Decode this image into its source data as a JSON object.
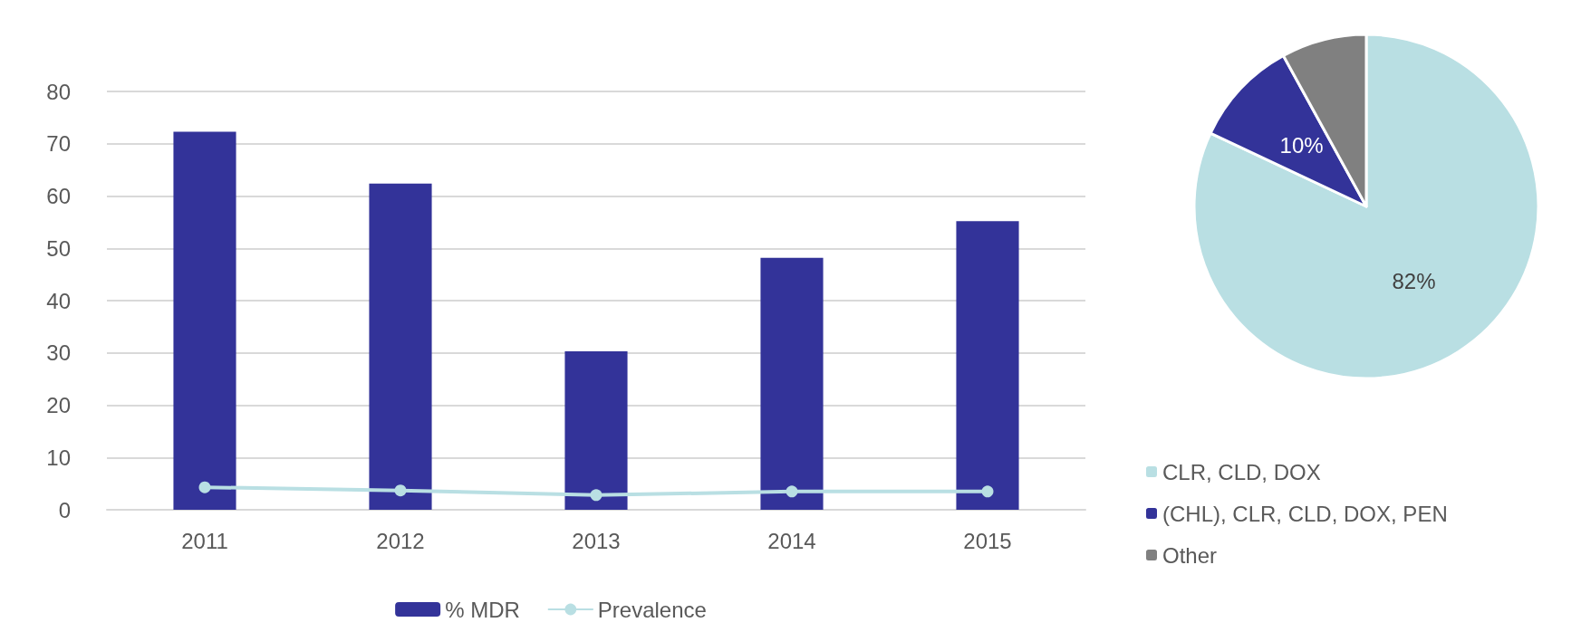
{
  "chart_data": [
    {
      "type": "bar",
      "categories": [
        "2011",
        "2012",
        "2013",
        "2014",
        "2015"
      ],
      "series": [
        {
          "name": "% MDR",
          "type": "bar",
          "color": "#333399",
          "values": [
            72.3,
            62.4,
            30.3,
            48.2,
            55.2
          ]
        },
        {
          "name": "Prevalence",
          "type": "line",
          "color": "#b9dfe3",
          "values": [
            4.3,
            3.7,
            2.8,
            3.5,
            3.5
          ]
        }
      ],
      "ylim": [
        0,
        80
      ],
      "yticks": [
        0,
        10,
        20,
        30,
        40,
        50,
        60,
        70,
        80
      ],
      "grid": "y",
      "legend": "bottom",
      "marker": "circle",
      "line_style": "solid"
    },
    {
      "type": "pie",
      "categories": [
        "CLR, CLD, DOX",
        "(CHL), CLR, CLD, DOX, PEN",
        "Other"
      ],
      "values": [
        82,
        10,
        8
      ],
      "colors": [
        "#b9dfe3",
        "#333399",
        "#808080"
      ],
      "value_labels": [
        "82%",
        "10%",
        null
      ],
      "legend": "bottom"
    }
  ]
}
